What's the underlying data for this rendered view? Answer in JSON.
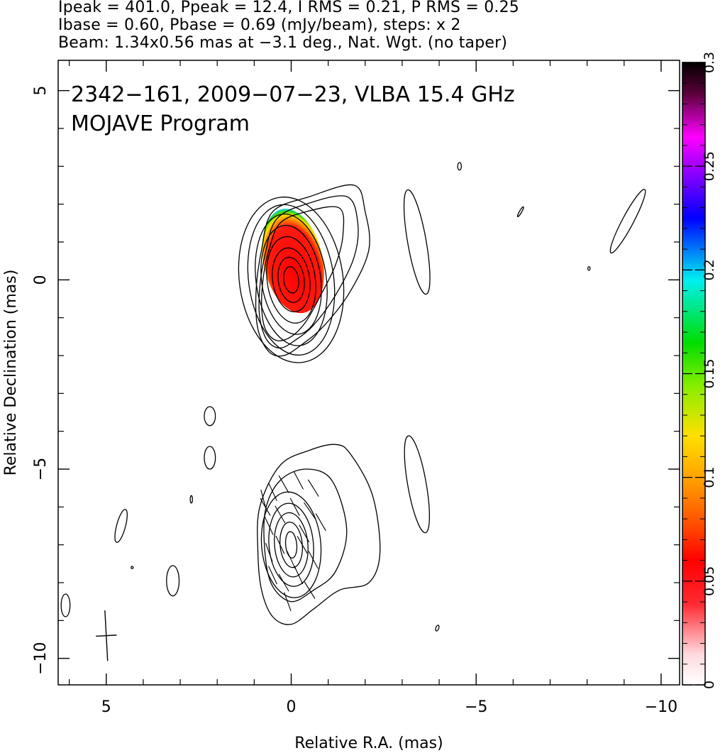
{
  "header": {
    "line1": "Ipeak = 401.0, Ppeak = 12.4, I RMS = 0.21, P RMS = 0.25",
    "line2": "Ibase = 0.60, Pbase = 0.69 (mJy/beam), steps: x 2",
    "line3": "Beam: 1.34x0.56 mas at −3.1 deg., Nat. Wgt. (no taper)"
  },
  "chart_data": {
    "type": "heatmap",
    "title": "2342−161, 2009−07−23, VLBA 15.4 GHz",
    "subtitle": "MOJAVE Program",
    "xlabel": "Relative R.A. (mas)",
    "ylabel": "Relative Declination (mas)",
    "xlim": [
      6.3,
      -10.5
    ],
    "ylim": [
      -10.7,
      5.8
    ],
    "x_ticks": [
      {
        "value": 5,
        "label": "5"
      },
      {
        "value": 0,
        "label": "0"
      },
      {
        "value": -5,
        "label": "−5"
      },
      {
        "value": -10,
        "label": "−10"
      }
    ],
    "y_ticks": [
      {
        "value": 5,
        "label": "5"
      },
      {
        "value": 0,
        "label": "0"
      },
      {
        "value": -5,
        "label": "−5"
      },
      {
        "value": -10,
        "label": "−10"
      }
    ],
    "colorbar": {
      "range": [
        0,
        0.3
      ],
      "ticks": [
        {
          "value": 0,
          "label": "0"
        },
        {
          "value": 0.05,
          "label": "0.05"
        },
        {
          "value": 0.1,
          "label": "0.1"
        },
        {
          "value": 0.15,
          "label": "0.15"
        },
        {
          "value": 0.2,
          "label": "0.2"
        },
        {
          "value": 0.25,
          "label": "0.25"
        },
        {
          "value": 0.3,
          "label": "0.3"
        }
      ]
    },
    "upper_image": {
      "center": [
        0,
        0
      ],
      "contour_radii": [
        [
          0.2,
          0.35
        ],
        [
          0.35,
          0.6
        ],
        [
          0.5,
          0.85
        ],
        [
          0.65,
          1.15
        ],
        [
          0.8,
          1.45
        ],
        [
          0.95,
          1.75
        ],
        [
          1.15,
          2.0
        ],
        [
          1.4,
          2.2
        ]
      ],
      "outer_contours": [
        [
          [
            0.8,
            0.8
          ],
          [
            0.5,
            1.8
          ],
          [
            -0.5,
            2.2
          ],
          [
            -1.7,
            2.5
          ],
          [
            -2.0,
            1.8
          ],
          [
            -2.1,
            0.8
          ],
          [
            -1.6,
            -0.3
          ],
          [
            -0.9,
            -1.2
          ],
          [
            -0.3,
            -1.7
          ],
          [
            0.2,
            -2.0
          ],
          [
            0.6,
            -1.9
          ],
          [
            0.9,
            -1.3
          ],
          [
            0.95,
            -0.3
          ]
        ],
        [
          [
            0.7,
            0.7
          ],
          [
            0.4,
            1.6
          ],
          [
            -0.4,
            2.0
          ],
          [
            -1.5,
            2.2
          ],
          [
            -1.8,
            1.5
          ],
          [
            -1.7,
            0.6
          ],
          [
            -1.2,
            -0.4
          ],
          [
            -0.6,
            -1.2
          ],
          [
            -0.1,
            -1.6
          ],
          [
            0.3,
            -1.8
          ],
          [
            0.65,
            -1.6
          ],
          [
            0.85,
            -1.0
          ],
          [
            0.85,
            -0.2
          ]
        ],
        [
          [
            0.6,
            0.8
          ],
          [
            0.3,
            1.5
          ],
          [
            -0.4,
            1.8
          ],
          [
            -1.3,
            1.9
          ],
          [
            -1.4,
            1.2
          ],
          [
            -1.2,
            0.4
          ],
          [
            -0.8,
            -0.4
          ],
          [
            -0.4,
            -1.1
          ],
          [
            0.0,
            -1.5
          ],
          [
            0.4,
            -1.6
          ],
          [
            0.7,
            -1.3
          ],
          [
            0.8,
            -0.7
          ],
          [
            0.75,
            0.1
          ]
        ]
      ],
      "polarization_region": {
        "center": [
          -0.05,
          0.5
        ],
        "rx": 0.8,
        "ry": 1.4
      }
    },
    "lower_image": {
      "center": [
        0,
        -7
      ],
      "contour_radii": [
        [
          0.15,
          0.35
        ],
        [
          0.3,
          0.6
        ],
        [
          0.45,
          0.85
        ],
        [
          0.6,
          1.1
        ],
        [
          0.8,
          1.4
        ]
      ],
      "outer_contours": [
        [
          [
            0.85,
            -6.0
          ],
          [
            0.9,
            -7.2
          ],
          [
            0.8,
            -8.2
          ],
          [
            0.5,
            -8.9
          ],
          [
            0.0,
            -9.1
          ],
          [
            -0.6,
            -8.7
          ],
          [
            -1.3,
            -8.2
          ],
          [
            -2.1,
            -8.0
          ],
          [
            -2.4,
            -7.2
          ],
          [
            -2.2,
            -5.7
          ],
          [
            -1.6,
            -4.6
          ],
          [
            -1.2,
            -4.35
          ],
          [
            -0.5,
            -4.5
          ],
          [
            0.3,
            -4.9
          ]
        ],
        [
          [
            0.7,
            -6.1
          ],
          [
            0.7,
            -7.3
          ],
          [
            0.5,
            -8.1
          ],
          [
            0.0,
            -8.5
          ],
          [
            -0.6,
            -8.2
          ],
          [
            -1.2,
            -7.7
          ],
          [
            -1.5,
            -6.6
          ],
          [
            -1.1,
            -5.3
          ],
          [
            -0.4,
            -5.0
          ],
          [
            0.3,
            -5.3
          ]
        ]
      ],
      "evpa_vectors": [
        [
          0.7,
          -6.0,
          30
        ],
        [
          0.5,
          -5.6,
          25
        ],
        [
          0.2,
          -5.4,
          30
        ],
        [
          -0.2,
          -5.3,
          28
        ],
        [
          -0.6,
          -5.5,
          32
        ],
        [
          0.6,
          -6.5,
          25
        ],
        [
          0.3,
          -6.2,
          30
        ],
        [
          -0.1,
          -6.0,
          28
        ],
        [
          -0.5,
          -6.1,
          35
        ],
        [
          -0.8,
          -6.4,
          30
        ],
        [
          0.6,
          -7.2,
          20
        ],
        [
          0.3,
          -7.0,
          25
        ],
        [
          -0.3,
          -7.0,
          30
        ],
        [
          -0.6,
          -7.4,
          28
        ],
        [
          0.5,
          -7.8,
          25
        ],
        [
          0.2,
          -8.0,
          30
        ],
        [
          -0.2,
          -7.8,
          25
        ],
        [
          -0.5,
          -8.2,
          32
        ],
        [
          0.1,
          -8.5,
          20
        ],
        [
          0.75,
          -5.8,
          15
        ],
        [
          -0.35,
          -6.7,
          30
        ],
        [
          0.0,
          -7.4,
          25
        ]
      ]
    },
    "isolated_contours": [
      {
        "center": [
          -3.4,
          1.0
        ],
        "rx": 0.25,
        "ry": 1.4,
        "angle": -10
      },
      {
        "center": [
          -3.4,
          -5.4
        ],
        "rx": 0.25,
        "ry": 1.3,
        "angle": -10
      },
      {
        "center": [
          -4.55,
          3.0
        ],
        "rx": 0.05,
        "ry": 0.1,
        "angle": 0
      },
      {
        "center": [
          -6.2,
          1.8
        ],
        "rx": 0.03,
        "ry": 0.15,
        "angle": 30
      },
      {
        "center": [
          -8.05,
          0.3
        ],
        "rx": 0.03,
        "ry": 0.05,
        "angle": 0
      },
      {
        "center": [
          -9.1,
          1.55
        ],
        "rx": 0.15,
        "ry": 0.95,
        "angle": 28
      },
      {
        "center": [
          2.2,
          -3.6
        ],
        "rx": 0.15,
        "ry": 0.25,
        "angle": 0
      },
      {
        "center": [
          2.2,
          -4.7
        ],
        "rx": 0.15,
        "ry": 0.3,
        "angle": 0
      },
      {
        "center": [
          4.6,
          -6.5
        ],
        "rx": 0.12,
        "ry": 0.45,
        "angle": 15
      },
      {
        "center": [
          3.2,
          -7.95
        ],
        "rx": 0.17,
        "ry": 0.4,
        "angle": 0
      },
      {
        "center": [
          6.1,
          -8.6
        ],
        "rx": 0.12,
        "ry": 0.3,
        "angle": 0
      },
      {
        "center": [
          2.7,
          -5.8
        ],
        "rx": 0.03,
        "ry": 0.1,
        "angle": 0
      },
      {
        "center": [
          4.3,
          -7.6
        ],
        "rx": 0.02,
        "ry": 0.03,
        "angle": 0
      },
      {
        "center": [
          -3.95,
          -9.2
        ],
        "rx": 0.04,
        "ry": 0.08,
        "angle": 20
      }
    ],
    "beam_marker": {
      "center": [
        5.0,
        -9.4
      ],
      "major": 1.34,
      "minor": 0.56,
      "pa_deg": -3.1
    }
  }
}
